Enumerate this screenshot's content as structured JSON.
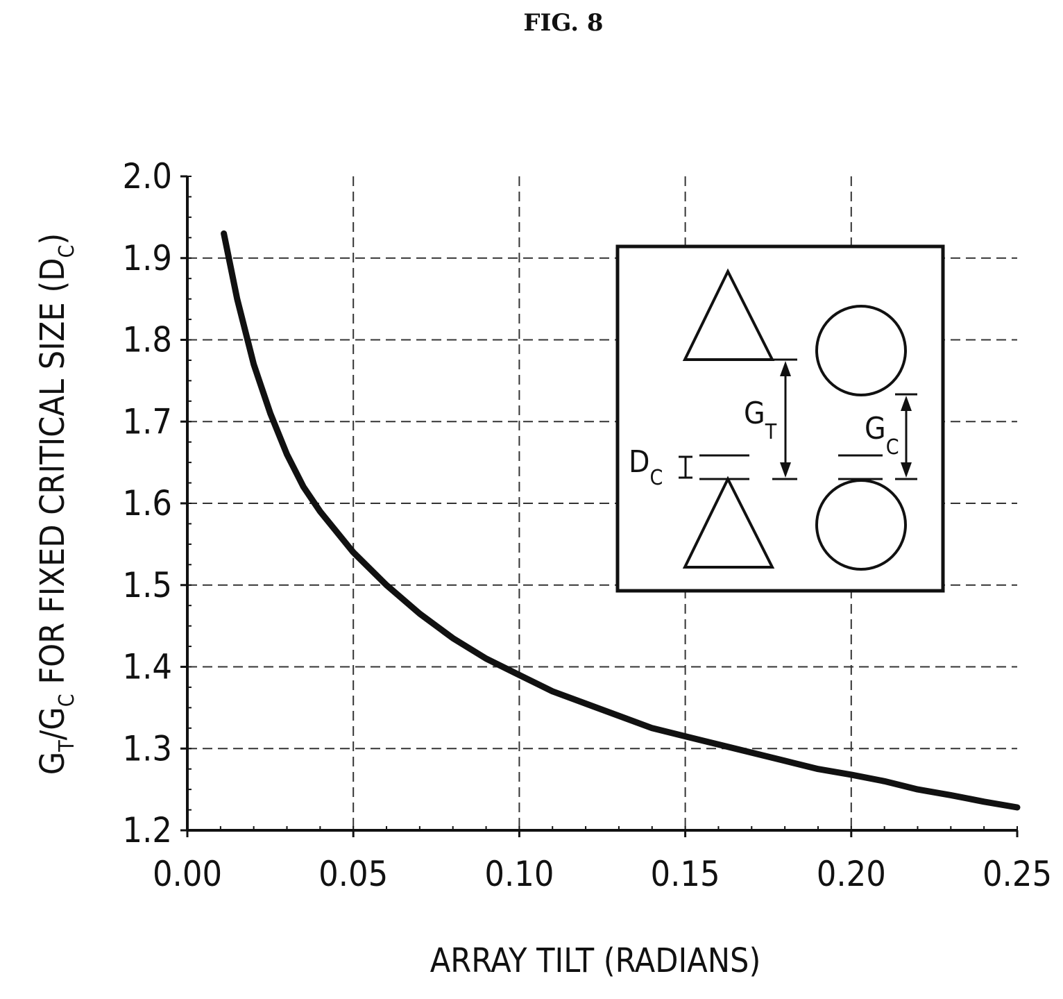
{
  "figure": {
    "title": "FIG. 8"
  },
  "chart_data": {
    "type": "line",
    "title": "",
    "xlabel": "ARRAY TILT (RADIANS)",
    "ylabel": {
      "prefix": "G",
      "sub1": "T",
      "mid": "/G",
      "sub2": "C",
      "rest": " FOR FIXED CRITICAL SIZE (D",
      "sub3": "C",
      "end": ")"
    },
    "xlim": [
      0.0,
      0.25
    ],
    "ylim": [
      1.2,
      2.0
    ],
    "x_ticks": [
      "0.00",
      "0.05",
      "0.10",
      "0.15",
      "0.20",
      "0.25"
    ],
    "y_ticks": [
      "1.2",
      "1.3",
      "1.4",
      "1.5",
      "1.6",
      "1.7",
      "1.8",
      "1.9",
      "2.0"
    ],
    "grid": true,
    "series": [
      {
        "name": "",
        "x": [
          0.011,
          0.015,
          0.02,
          0.025,
          0.03,
          0.035,
          0.04,
          0.05,
          0.06,
          0.07,
          0.08,
          0.09,
          0.1,
          0.11,
          0.12,
          0.13,
          0.14,
          0.15,
          0.16,
          0.17,
          0.18,
          0.19,
          0.2,
          0.21,
          0.22,
          0.23,
          0.24,
          0.25
        ],
        "y": [
          1.93,
          1.85,
          1.77,
          1.71,
          1.66,
          1.62,
          1.59,
          1.54,
          1.5,
          1.465,
          1.435,
          1.41,
          1.39,
          1.37,
          1.355,
          1.34,
          1.325,
          1.315,
          1.305,
          1.295,
          1.285,
          1.275,
          1.268,
          1.26,
          1.25,
          1.243,
          1.235,
          1.228
        ]
      }
    ],
    "inset": {
      "gt": {
        "main": "G",
        "sub": "T"
      },
      "gc": {
        "main": "G",
        "sub": "C"
      },
      "dc": {
        "main": "D",
        "sub": "C"
      }
    }
  }
}
